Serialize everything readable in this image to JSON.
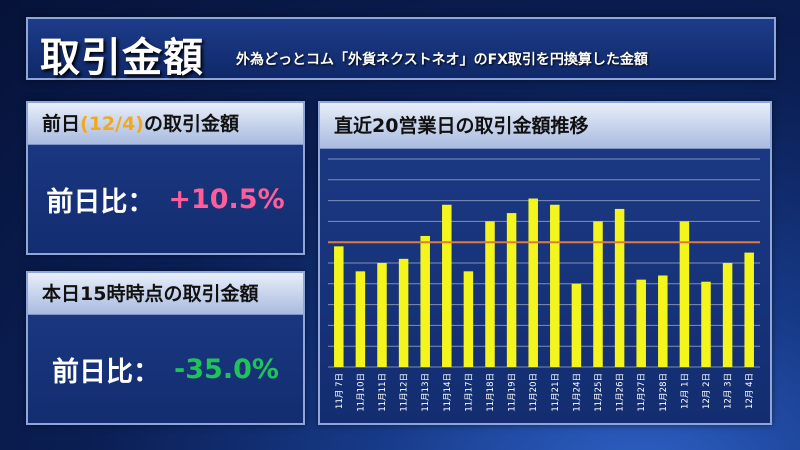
{
  "header": {
    "title": "取引金額",
    "subtitle": "外為どっとコム「外貨ネクストネオ」のFX取引を円換算した金額"
  },
  "prev_day_card": {
    "title_prefix": "前日",
    "title_date": "(12/4)",
    "title_suffix": "の取引金額",
    "compare_label": "前日比：",
    "compare_value": "+10.5%"
  },
  "today_card": {
    "title": "本日15時時点の取引金額",
    "compare_label": "前日比：",
    "compare_value": "-35.0%"
  },
  "colors": {
    "positive": "#ff5e9b",
    "negative": "#1ec45a",
    "bar": "#f5f51e",
    "average_line": "#e07a3c"
  },
  "chart_data": {
    "type": "bar",
    "title": "直近20営業日の取引金額推移",
    "categories": [
      "11月 7日",
      "11月10日",
      "11月11日",
      "11月12日",
      "11月13日",
      "11月14日",
      "11月17日",
      "11月18日",
      "11月19日",
      "11月20日",
      "11月21日",
      "11月24日",
      "11月25日",
      "11月26日",
      "11月27日",
      "11月28日",
      "12月 1日",
      "12月 2日",
      "12月 3日",
      "12月 4日"
    ],
    "values": [
      5.8,
      4.6,
      5.0,
      5.2,
      6.3,
      7.8,
      4.6,
      7.0,
      7.4,
      8.1,
      7.8,
      4.0,
      7.0,
      7.6,
      4.2,
      4.4,
      7.0,
      4.1,
      5.0,
      5.5
    ],
    "average": 6.0,
    "ylim": [
      0,
      10
    ],
    "grid": true,
    "xlabel": "",
    "ylabel": ""
  }
}
